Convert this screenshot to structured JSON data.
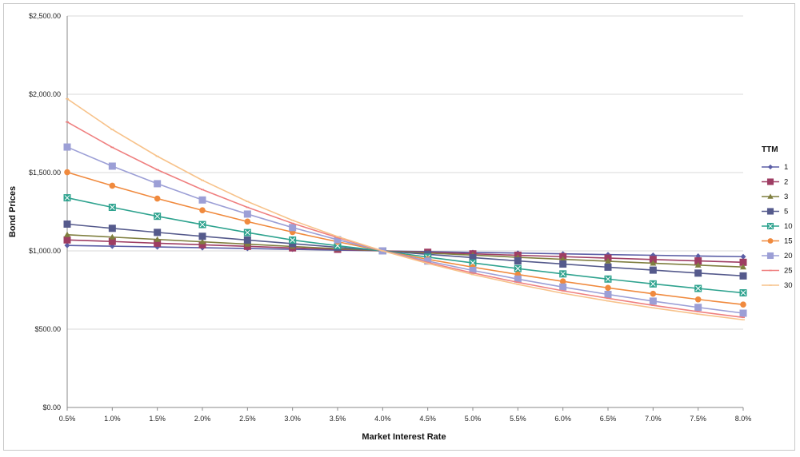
{
  "chart_data": {
    "type": "line",
    "title": "",
    "xlabel": "Market Interest Rate",
    "ylabel": "Bond Prices",
    "x": [
      "0.5%",
      "1.0%",
      "1.5%",
      "2.0%",
      "2.5%",
      "3.0%",
      "3.5%",
      "4.0%",
      "4.5%",
      "5.0%",
      "5.5%",
      "6.0%",
      "6.5%",
      "7.0%",
      "7.5%",
      "8.0%"
    ],
    "yticks": [
      "$0.00",
      "$500.00",
      "$1,000.00",
      "$1,500.00",
      "$2,000.00",
      "$2,500.00"
    ],
    "ytick_values": [
      0,
      500,
      1000,
      1500,
      2000,
      2500
    ],
    "ylim": [
      0,
      2500
    ],
    "grid": true,
    "legend": {
      "title": "TTM",
      "placement": "right"
    },
    "series": [
      {
        "name": "1",
        "color": "#5b5ea6",
        "marker": "diamond",
        "values": [
          1035,
          1030,
          1025,
          1020,
          1015,
          1010,
          1005,
          1000,
          995,
          990,
          986,
          981,
          976,
          972,
          967,
          963
        ]
      },
      {
        "name": "2",
        "color": "#9e3d63",
        "marker": "square",
        "values": [
          1070,
          1060,
          1049,
          1039,
          1029,
          1019,
          1010,
          1000,
          991,
          981,
          972,
          963,
          954,
          945,
          936,
          927
        ]
      },
      {
        "name": "3",
        "color": "#7f7f3f",
        "marker": "triangle",
        "values": [
          1103,
          1088,
          1073,
          1058,
          1043,
          1028,
          1014,
          1000,
          986,
          973,
          959,
          946,
          934,
          921,
          909,
          897
        ]
      },
      {
        "name": "5",
        "color": "#555a8c",
        "marker": "square",
        "values": [
          1171,
          1144,
          1118,
          1093,
          1069,
          1046,
          1023,
          1000,
          978,
          957,
          936,
          916,
          896,
          877,
          858,
          840
        ]
      },
      {
        "name": "10",
        "color": "#2fa38f",
        "marker": "xsquare",
        "values": [
          1339,
          1278,
          1221,
          1168,
          1117,
          1069,
          1033,
          1000,
          960,
          923,
          887,
          853,
          820,
          789,
          760,
          732
        ]
      },
      {
        "name": "15",
        "color": "#f08a3e",
        "marker": "circle",
        "values": [
          1502,
          1416,
          1334,
          1259,
          1187,
          1120,
          1058,
          1000,
          946,
          896,
          849,
          805,
          764,
          726,
          690,
          657
        ]
      },
      {
        "name": "20",
        "color": "#9c9fd6",
        "marker": "square",
        "values": [
          1663,
          1541,
          1429,
          1325,
          1235,
          1149,
          1071,
          1000,
          935,
          875,
          820,
          769,
          722,
          679,
          639,
          602
        ]
      },
      {
        "name": "25",
        "color": "#ef7f7f",
        "marker": "dash",
        "values": [
          1823,
          1661,
          1518,
          1391,
          1278,
          1176,
          1085,
          1000,
          926,
          859,
          799,
          745,
          697,
          652,
          612,
          575
        ]
      },
      {
        "name": "30",
        "color": "#f7c28a",
        "marker": "dash",
        "values": [
          1971,
          1775,
          1604,
          1451,
          1315,
          1195,
          1091,
          1000,
          920,
          849,
          786,
          729,
          680,
          636,
          596,
          560
        ]
      }
    ]
  }
}
